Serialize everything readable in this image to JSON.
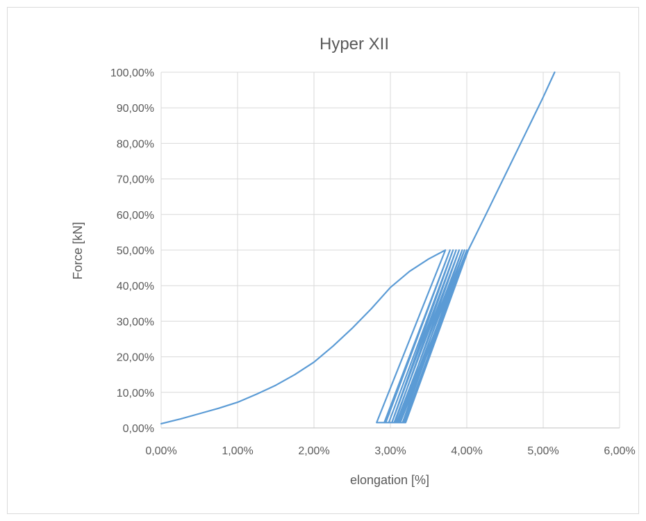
{
  "chart_data": {
    "type": "line",
    "title": "Hyper XII",
    "xlabel": "elongation [%]",
    "ylabel": "Force [kN]",
    "xlim": [
      0,
      0.06
    ],
    "ylim": [
      0,
      1.0
    ],
    "x_ticks": [
      "0,00%",
      "1,00%",
      "2,00%",
      "3,00%",
      "4,00%",
      "5,00%",
      "6,00%"
    ],
    "y_ticks": [
      "0,00%",
      "10,00%",
      "20,00%",
      "30,00%",
      "40,00%",
      "50,00%",
      "60,00%",
      "70,00%",
      "80,00%",
      "90,00%",
      "100,00%"
    ],
    "grid": true,
    "legend": "none",
    "series_color": "#5b9bd5",
    "series": [
      {
        "x": [
          0.0,
          0.0025,
          0.005,
          0.0075,
          0.01,
          0.0125,
          0.015,
          0.0175,
          0.02,
          0.0225,
          0.025,
          0.0275,
          0.03,
          0.0325,
          0.035,
          0.0372,
          0.0282,
          0.0294,
          0.0378,
          0.0292,
          0.0302,
          0.0382,
          0.0298,
          0.0306,
          0.0386,
          0.0302,
          0.031,
          0.039,
          0.0305,
          0.0313,
          0.0394,
          0.0308,
          0.0316,
          0.0397,
          0.031,
          0.0318,
          0.04,
          0.0312,
          0.032,
          0.0402,
          0.0313,
          0.0402,
          0.0425,
          0.045,
          0.0475,
          0.05,
          0.0515
        ],
        "y": [
          0.012,
          0.025,
          0.04,
          0.055,
          0.072,
          0.095,
          0.12,
          0.15,
          0.185,
          0.23,
          0.28,
          0.335,
          0.395,
          0.44,
          0.475,
          0.5,
          0.015,
          0.015,
          0.5,
          0.015,
          0.015,
          0.5,
          0.015,
          0.015,
          0.5,
          0.015,
          0.015,
          0.5,
          0.015,
          0.015,
          0.5,
          0.015,
          0.015,
          0.5,
          0.015,
          0.015,
          0.5,
          0.015,
          0.015,
          0.5,
          0.015,
          0.5,
          0.6,
          0.71,
          0.82,
          0.93,
          1.0
        ]
      }
    ]
  }
}
